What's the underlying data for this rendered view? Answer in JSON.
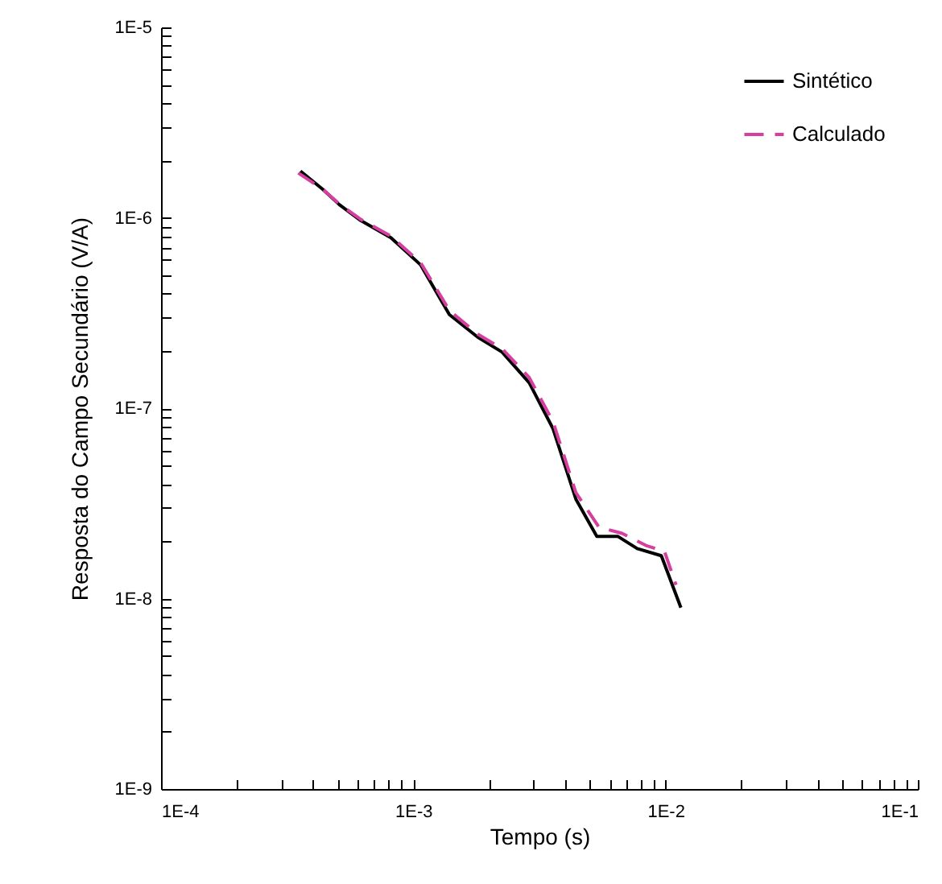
{
  "chart_data": {
    "type": "line",
    "xlabel": "Tempo (s)",
    "ylabel": "Resposta do Campo Secundário (V/A)",
    "log": "xy",
    "grid": false,
    "legend": "top right",
    "xlim": [
      0.0001,
      0.1
    ],
    "ylim": [
      1e-09,
      1e-05
    ],
    "xticks": [
      {
        "value": 0.0001,
        "label": "1E-4"
      },
      {
        "value": 0.0002,
        "label": null
      },
      {
        "value": 0.0003,
        "label": null
      },
      {
        "value": 0.0004,
        "label": null
      },
      {
        "value": 0.0005,
        "label": null
      },
      {
        "value": 0.0006,
        "label": null
      },
      {
        "value": 0.0007,
        "label": null
      },
      {
        "value": 0.0008,
        "label": null
      },
      {
        "value": 0.0009,
        "label": null
      },
      {
        "value": 0.001,
        "label": "1E-3"
      },
      {
        "value": 0.002,
        "label": null
      },
      {
        "value": 0.003,
        "label": null
      },
      {
        "value": 0.004,
        "label": null
      },
      {
        "value": 0.005,
        "label": null
      },
      {
        "value": 0.006,
        "label": null
      },
      {
        "value": 0.007,
        "label": null
      },
      {
        "value": 0.008,
        "label": null
      },
      {
        "value": 0.009,
        "label": null
      },
      {
        "value": 0.01,
        "label": "1E-2"
      },
      {
        "value": 0.02,
        "label": null
      },
      {
        "value": 0.03,
        "label": null
      },
      {
        "value": 0.04,
        "label": null
      },
      {
        "value": 0.05,
        "label": null
      },
      {
        "value": 0.06,
        "label": null
      },
      {
        "value": 0.07,
        "label": null
      },
      {
        "value": 0.08,
        "label": null
      },
      {
        "value": 0.09,
        "label": null
      },
      {
        "value": 0.1,
        "label": "1E-1"
      }
    ],
    "yticks": [
      {
        "value": 1e-09,
        "label": "1E-9"
      },
      {
        "value": 2e-09,
        "label": null
      },
      {
        "value": 3e-09,
        "label": null
      },
      {
        "value": 4e-09,
        "label": null
      },
      {
        "value": 5e-09,
        "label": null
      },
      {
        "value": 6e-09,
        "label": null
      },
      {
        "value": 7e-09,
        "label": null
      },
      {
        "value": 8e-09,
        "label": null
      },
      {
        "value": 9e-09,
        "label": null
      },
      {
        "value": 1e-08,
        "label": "1E-8"
      },
      {
        "value": 2e-08,
        "label": null
      },
      {
        "value": 3e-08,
        "label": null
      },
      {
        "value": 4e-08,
        "label": null
      },
      {
        "value": 5e-08,
        "label": null
      },
      {
        "value": 6e-08,
        "label": null
      },
      {
        "value": 7e-08,
        "label": null
      },
      {
        "value": 8e-08,
        "label": null
      },
      {
        "value": 9e-08,
        "label": null
      },
      {
        "value": 1e-07,
        "label": "1E-7"
      },
      {
        "value": 2e-07,
        "label": null
      },
      {
        "value": 3e-07,
        "label": null
      },
      {
        "value": 4e-07,
        "label": null
      },
      {
        "value": 5e-07,
        "label": null
      },
      {
        "value": 6e-07,
        "label": null
      },
      {
        "value": 7e-07,
        "label": null
      },
      {
        "value": 8e-07,
        "label": null
      },
      {
        "value": 9e-07,
        "label": null
      },
      {
        "value": 1e-06,
        "label": "1E-6"
      },
      {
        "value": 2e-06,
        "label": null
      },
      {
        "value": 3e-06,
        "label": null
      },
      {
        "value": 4e-06,
        "label": null
      },
      {
        "value": 5e-06,
        "label": null
      },
      {
        "value": 6e-06,
        "label": null
      },
      {
        "value": 7e-06,
        "label": null
      },
      {
        "value": 8e-06,
        "label": null
      },
      {
        "value": 9e-06,
        "label": null
      },
      {
        "value": 1e-05,
        "label": "1E-5"
      }
    ],
    "series": [
      {
        "name": "Sintético",
        "color": "#000000",
        "line_style": "solid",
        "x": [
          0.000357,
          0.000438,
          0.00051,
          0.00062,
          0.000815,
          0.00107,
          0.00139,
          0.0018,
          0.00225,
          0.00288,
          0.00358,
          0.00441,
          0.00534,
          0.00648,
          0.00772,
          0.00962,
          0.0115
        ],
        "values": [
          1.76e-06,
          1.41e-06,
          1.17e-06,
          9.66e-07,
          7.86e-07,
          5.65e-07,
          3.1e-07,
          2.36e-07,
          1.97e-07,
          1.36e-07,
          7.8e-08,
          3.33e-08,
          2.12e-08,
          2.12e-08,
          1.83e-08,
          1.68e-08,
          8.96e-09
        ]
      },
      {
        "name": "Calculado",
        "color": "#d63fa0",
        "line_style": "dashed",
        "x": [
          0.00035,
          0.000438,
          0.00051,
          0.00062,
          0.000815,
          0.00107,
          0.00139,
          0.0018,
          0.00225,
          0.00288,
          0.00358,
          0.00441,
          0.00545,
          0.00673,
          0.00837,
          0.0099,
          0.011
        ],
        "values": [
          1.72e-06,
          1.41e-06,
          1.18e-06,
          9.8e-07,
          8e-07,
          5.8e-07,
          3.26e-07,
          2.45e-07,
          2.05e-07,
          1.45e-07,
          8.5e-08,
          3.6e-08,
          2.37e-08,
          2.2e-08,
          1.9e-08,
          1.77e-08,
          1.18e-08
        ]
      }
    ]
  }
}
